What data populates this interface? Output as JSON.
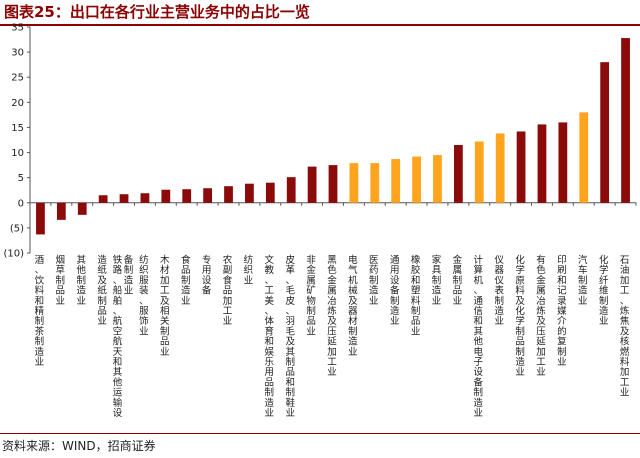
{
  "header": {
    "title": "图表25：出口在各行业主营业务中的占比一览"
  },
  "footer": {
    "source": "资料来源：WIND，招商证券"
  },
  "colors": {
    "bar_dark": "#8b0a0a",
    "bar_orange": "#ffa41c",
    "accent": "#8b0000"
  },
  "chart_data": {
    "type": "bar",
    "title": "",
    "xlabel": "",
    "ylabel": "",
    "ylim": [
      -10,
      35
    ],
    "yticks": [
      -10,
      -5,
      0,
      5,
      10,
      15,
      20,
      25,
      30,
      35
    ],
    "ytick_labels": [
      "(10)",
      "(5)",
      "0",
      "5",
      "10",
      "15",
      "20",
      "25",
      "30",
      "35"
    ],
    "grid": false,
    "legend": "none",
    "categories": [
      "酒、饮料和精制茶制造业",
      "烟草制品业",
      "其他制造业",
      "造纸及纸制品业",
      "铁路、船舶、航空航天和其他运输设备制造业",
      "纺织服装、服饰业",
      "木材加工及相关制品业",
      "食品制造业",
      "专用设备",
      "农副食品加工业",
      "纺织业",
      "文教、工美、体育和娱乐用品制造业",
      "皮革、毛皮、羽毛及其制品和制鞋业",
      "非金属矿物制品业",
      "黑色金属冶炼及压延加工业",
      "电气机械及器材制造业",
      "医药制造业",
      "通用设备制造业",
      "橡胶和塑料制品业",
      "家具制造业",
      "金属制品业",
      "计算机、通信和其他电子设备制造业",
      "仪器仪表制造业",
      "化学原料及化学制品制造业",
      "有色金属冶炼及压延加工业",
      "印刷和记录媒介的复制业",
      "汽车制造业",
      "化学纤维制造业",
      "石油加工、炼焦及核燃料加工业"
    ],
    "values": [
      -6.3,
      -3.4,
      -2.4,
      1.5,
      1.7,
      1.9,
      2.6,
      2.7,
      2.9,
      3.3,
      3.8,
      4.0,
      5.1,
      7.2,
      7.5,
      7.9,
      7.9,
      8.7,
      9.2,
      9.5,
      11.5,
      12.2,
      13.8,
      14.2,
      15.6,
      16.0,
      18.0,
      28.0,
      32.8
    ],
    "bar_colors": [
      "dark",
      "dark",
      "dark",
      "dark",
      "dark",
      "dark",
      "dark",
      "dark",
      "dark",
      "dark",
      "dark",
      "dark",
      "dark",
      "dark",
      "dark",
      "orange",
      "orange",
      "orange",
      "orange",
      "orange",
      "dark",
      "orange",
      "orange",
      "dark",
      "dark",
      "dark",
      "orange",
      "dark",
      "dark"
    ]
  }
}
